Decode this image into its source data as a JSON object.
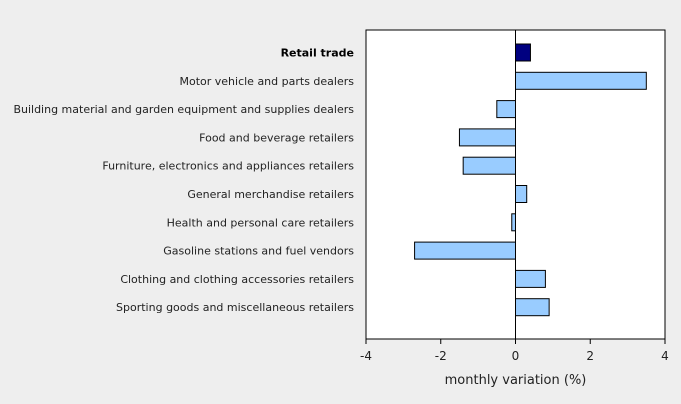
{
  "chart_data": {
    "type": "bar",
    "orientation": "horizontal",
    "categories": [
      "Retail trade",
      "Motor vehicle and parts dealers",
      "Building material and garden equipment and supplies dealers",
      "Food and beverage retailers",
      "Furniture, electronics and appliances retailers",
      "General merchandise retailers",
      "Health and personal care retailers",
      "Gasoline stations and fuel vendors",
      "Clothing and clothing accessories retailers",
      "Sporting goods and miscellaneous retailers"
    ],
    "values": [
      0.4,
      3.5,
      -0.5,
      -1.5,
      -1.4,
      0.3,
      -0.1,
      -2.7,
      0.8,
      0.9
    ],
    "highlight_index": 0,
    "xlabel": "monthly variation (%)",
    "ylabel": "",
    "xlim": [
      -4,
      4
    ],
    "xticks": [
      -4,
      -2,
      0,
      2,
      4
    ],
    "grid": false,
    "colors": {
      "highlight": "#000080",
      "bar": "#99ccff",
      "bar_stroke": "#000000",
      "plot_bg": "#ffffff",
      "page_bg": "#eeeeee"
    }
  }
}
